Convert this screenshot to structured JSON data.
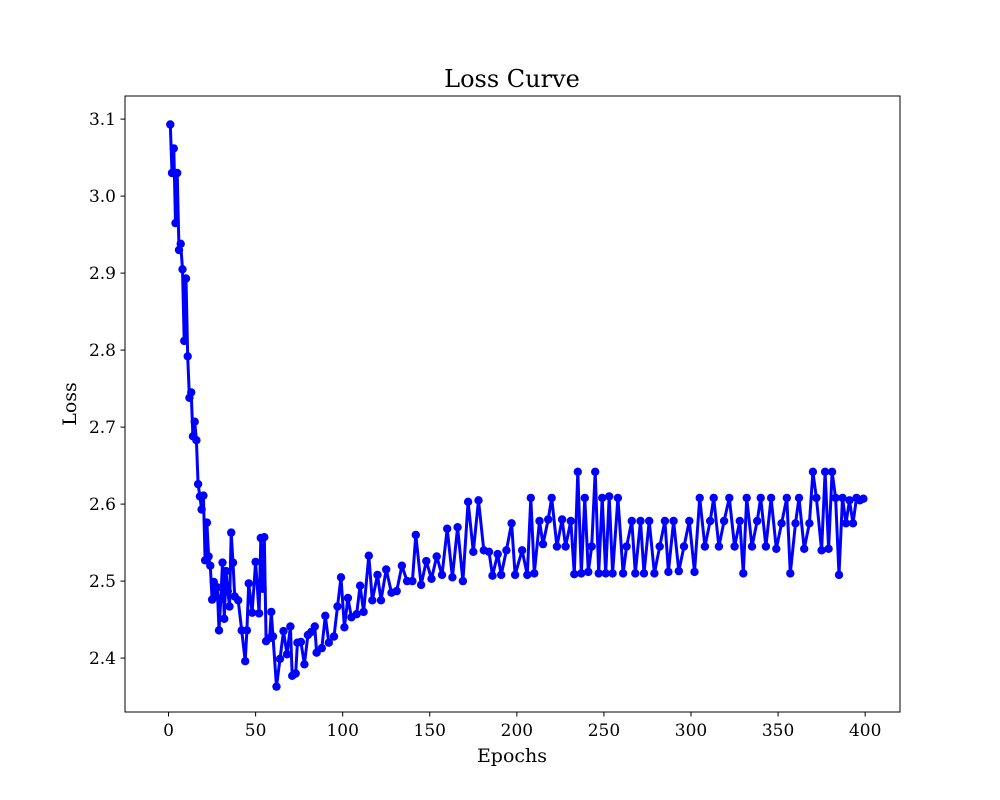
{
  "chart_data": {
    "type": "line",
    "title": "Loss Curve",
    "xlabel": "Epochs",
    "ylabel": "Loss",
    "xlim": [
      -25,
      420
    ],
    "ylim": [
      2.33,
      3.13
    ],
    "xticks": [
      0,
      50,
      100,
      150,
      200,
      250,
      300,
      350,
      400
    ],
    "yticks": [
      2.4,
      2.5,
      2.6,
      2.7,
      2.8,
      2.9,
      3.0,
      3.1
    ],
    "ytick_labels": [
      "2.4",
      "2.5",
      "2.6",
      "2.7",
      "2.8",
      "2.9",
      "3.0",
      "3.1"
    ],
    "grid": false,
    "series": [
      {
        "color": "#0000ff",
        "marker": "circle",
        "anchors": [
          [
            1,
            3.093
          ],
          [
            2,
            3.03
          ],
          [
            3,
            3.062
          ],
          [
            4,
            2.965
          ],
          [
            5,
            3.03
          ],
          [
            6,
            2.93
          ],
          [
            7,
            2.938
          ],
          [
            8,
            2.905
          ],
          [
            9,
            2.812
          ],
          [
            10,
            2.893
          ],
          [
            11,
            2.792
          ],
          [
            12,
            2.738
          ],
          [
            13,
            2.745
          ],
          [
            14,
            2.688
          ],
          [
            15,
            2.707
          ],
          [
            16,
            2.683
          ],
          [
            17,
            2.626
          ],
          [
            18,
            2.61
          ],
          [
            19,
            2.593
          ],
          [
            20,
            2.611
          ],
          [
            21,
            2.527
          ],
          [
            22,
            2.576
          ],
          [
            23,
            2.532
          ],
          [
            24,
            2.52
          ],
          [
            25,
            2.476
          ],
          [
            26,
            2.499
          ],
          [
            27,
            2.48
          ],
          [
            28,
            2.492
          ],
          [
            29,
            2.436
          ],
          [
            30,
            2.477
          ],
          [
            31,
            2.524
          ],
          [
            32,
            2.451
          ],
          [
            33,
            2.513
          ],
          [
            34,
            2.487
          ],
          [
            35,
            2.467
          ],
          [
            36,
            2.563
          ],
          [
            37,
            2.524
          ],
          [
            38,
            2.48
          ],
          [
            40,
            2.475
          ],
          [
            42,
            2.436
          ],
          [
            44,
            2.396
          ],
          [
            45,
            2.436
          ],
          [
            46,
            2.497
          ],
          [
            48,
            2.459
          ],
          [
            50,
            2.525
          ],
          [
            52,
            2.458
          ],
          [
            53,
            2.556
          ],
          [
            54,
            2.49
          ],
          [
            55,
            2.557
          ],
          [
            56,
            2.422
          ],
          [
            58,
            2.426
          ],
          [
            59,
            2.46
          ],
          [
            60,
            2.428
          ],
          [
            62,
            2.363
          ],
          [
            64,
            2.399
          ],
          [
            66,
            2.435
          ],
          [
            68,
            2.405
          ],
          [
            70,
            2.441
          ],
          [
            71,
            2.377
          ],
          [
            73,
            2.38
          ],
          [
            74,
            2.42
          ],
          [
            76,
            2.421
          ],
          [
            78,
            2.392
          ],
          [
            80,
            2.43
          ],
          [
            82,
            2.434
          ],
          [
            84,
            2.441
          ],
          [
            85,
            2.407
          ],
          [
            88,
            2.413
          ],
          [
            90,
            2.455
          ],
          [
            92,
            2.42
          ],
          [
            95,
            2.428
          ],
          [
            97,
            2.467
          ],
          [
            99,
            2.505
          ],
          [
            101,
            2.44
          ],
          [
            103,
            2.478
          ],
          [
            105,
            2.453
          ],
          [
            108,
            2.457
          ],
          [
            110,
            2.494
          ],
          [
            112,
            2.46
          ],
          [
            115,
            2.533
          ],
          [
            117,
            2.475
          ],
          [
            120,
            2.508
          ],
          [
            122,
            2.475
          ],
          [
            125,
            2.515
          ],
          [
            128,
            2.485
          ],
          [
            131,
            2.487
          ],
          [
            134,
            2.52
          ],
          [
            137,
            2.5
          ],
          [
            140,
            2.5
          ],
          [
            142,
            2.56
          ],
          [
            145,
            2.495
          ],
          [
            148,
            2.526
          ],
          [
            151,
            2.503
          ],
          [
            154,
            2.532
          ],
          [
            157,
            2.508
          ],
          [
            160,
            2.568
          ],
          [
            163,
            2.505
          ],
          [
            166,
            2.57
          ],
          [
            169,
            2.5
          ],
          [
            172,
            2.603
          ],
          [
            175,
            2.538
          ],
          [
            178,
            2.605
          ],
          [
            181,
            2.54
          ],
          [
            184,
            2.538
          ],
          [
            186,
            2.507
          ],
          [
            189,
            2.535
          ],
          [
            191,
            2.508
          ],
          [
            194,
            2.54
          ],
          [
            197,
            2.575
          ],
          [
            199,
            2.508
          ],
          [
            203,
            2.54
          ],
          [
            206,
            2.508
          ],
          [
            208,
            2.608
          ],
          [
            210,
            2.51
          ],
          [
            213,
            2.578
          ],
          [
            215,
            2.548
          ],
          [
            218,
            2.58
          ],
          [
            220,
            2.608
          ],
          [
            223,
            2.545
          ],
          [
            226,
            2.58
          ],
          [
            228,
            2.545
          ],
          [
            231,
            2.578
          ],
          [
            233,
            2.509
          ],
          [
            235,
            2.642
          ],
          [
            237,
            2.51
          ],
          [
            239,
            2.608
          ],
          [
            241,
            2.512
          ],
          [
            243,
            2.545
          ],
          [
            245,
            2.642
          ],
          [
            247,
            2.51
          ],
          [
            249,
            2.608
          ],
          [
            251,
            2.51
          ],
          [
            253,
            2.61
          ],
          [
            255,
            2.51
          ],
          [
            258,
            2.608
          ],
          [
            261,
            2.51
          ],
          [
            263,
            2.545
          ],
          [
            266,
            2.578
          ],
          [
            268,
            2.51
          ],
          [
            271,
            2.578
          ],
          [
            273,
            2.51
          ],
          [
            276,
            2.578
          ],
          [
            279,
            2.51
          ],
          [
            282,
            2.545
          ],
          [
            285,
            2.578
          ],
          [
            287,
            2.512
          ],
          [
            290,
            2.578
          ],
          [
            293,
            2.513
          ],
          [
            296,
            2.545
          ],
          [
            299,
            2.578
          ],
          [
            302,
            2.512
          ],
          [
            305,
            2.608
          ],
          [
            308,
            2.545
          ],
          [
            311,
            2.578
          ],
          [
            313,
            2.608
          ],
          [
            316,
            2.545
          ],
          [
            319,
            2.578
          ],
          [
            322,
            2.608
          ],
          [
            325,
            2.545
          ],
          [
            328,
            2.578
          ],
          [
            330,
            2.51
          ],
          [
            332,
            2.608
          ],
          [
            335,
            2.545
          ],
          [
            338,
            2.578
          ],
          [
            340,
            2.608
          ],
          [
            343,
            2.545
          ],
          [
            346,
            2.608
          ],
          [
            349,
            2.542
          ],
          [
            352,
            2.575
          ],
          [
            355,
            2.608
          ],
          [
            357,
            2.51
          ],
          [
            360,
            2.575
          ],
          [
            362,
            2.608
          ],
          [
            365,
            2.542
          ],
          [
            368,
            2.575
          ],
          [
            370,
            2.642
          ],
          [
            372,
            2.608
          ],
          [
            375,
            2.54
          ],
          [
            377,
            2.642
          ],
          [
            379,
            2.542
          ],
          [
            381,
            2.642
          ],
          [
            383,
            2.608
          ],
          [
            385,
            2.508
          ],
          [
            387,
            2.608
          ],
          [
            389,
            2.575
          ],
          [
            391,
            2.605
          ],
          [
            393,
            2.575
          ],
          [
            395,
            2.608
          ],
          [
            397,
            2.605
          ],
          [
            399,
            2.607
          ]
        ]
      }
    ]
  }
}
